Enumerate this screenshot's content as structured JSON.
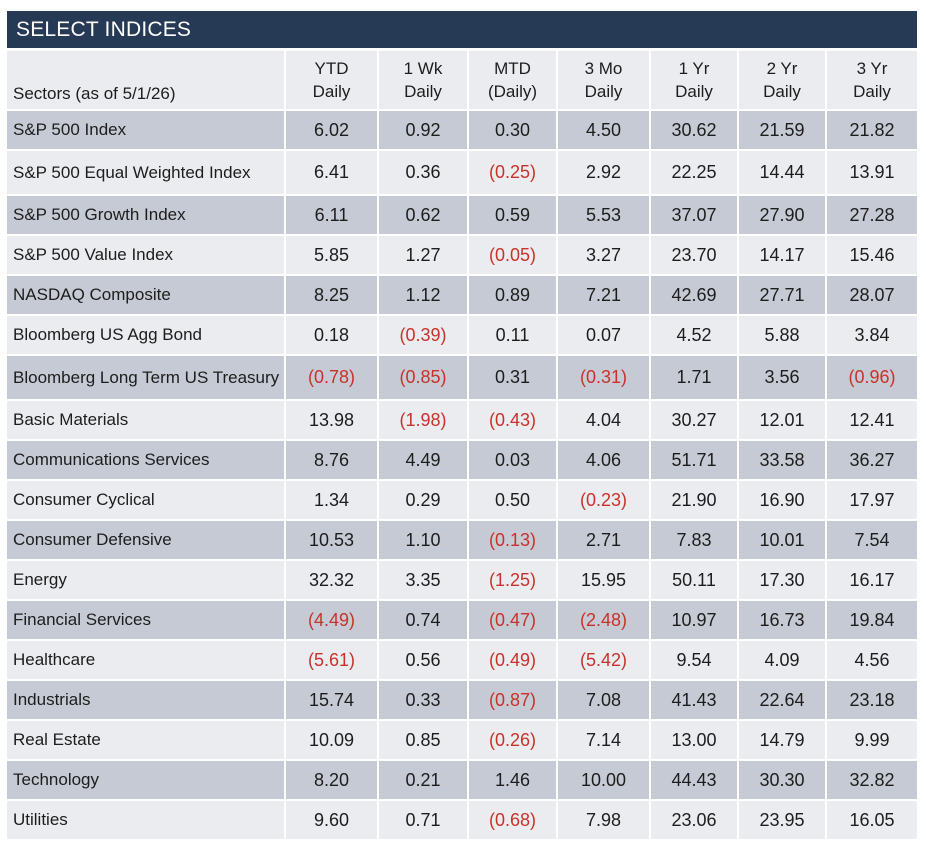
{
  "title": "SELECT INDICES",
  "header": {
    "first": "Sectors (as of 5/1/26)",
    "columns": [
      {
        "top": "YTD",
        "bottom": "Daily"
      },
      {
        "top": "1 Wk",
        "bottom": "Daily"
      },
      {
        "top": "MTD",
        "bottom": "(Daily)"
      },
      {
        "top": "3 Mo",
        "bottom": "Daily"
      },
      {
        "top": "1 Yr",
        "bottom": "Daily"
      },
      {
        "top": "2 Yr",
        "bottom": "Daily"
      },
      {
        "top": "3 Yr",
        "bottom": "Daily"
      }
    ]
  },
  "colors": {
    "header_bar": "#263955",
    "shaded_row": "#c6cad4",
    "plain_row": "#ebecef",
    "negative": "#c8322a"
  },
  "rows": [
    {
      "name": "S&P 500 Index",
      "values": [
        "6.02",
        "0.92",
        "0.30",
        "4.50",
        "30.62",
        "21.59",
        "21.82"
      ]
    },
    {
      "name": "S&P 500 Equal Weighted Index",
      "values": [
        "6.41",
        "0.36",
        "(0.25)",
        "2.92",
        "22.25",
        "14.44",
        "13.91"
      ]
    },
    {
      "name": "S&P 500 Growth Index",
      "values": [
        "6.11",
        "0.62",
        "0.59",
        "5.53",
        "37.07",
        "27.90",
        "27.28"
      ]
    },
    {
      "name": "S&P 500 Value Index",
      "values": [
        "5.85",
        "1.27",
        "(0.05)",
        "3.27",
        "23.70",
        "14.17",
        "15.46"
      ]
    },
    {
      "name": "NASDAQ Composite",
      "values": [
        "8.25",
        "1.12",
        "0.89",
        "7.21",
        "42.69",
        "27.71",
        "28.07"
      ]
    },
    {
      "name": "Bloomberg US Agg Bond",
      "values": [
        "0.18",
        "(0.39)",
        "0.11",
        "0.07",
        "4.52",
        "5.88",
        "3.84"
      ]
    },
    {
      "name": "Bloomberg Long Term US Treasury",
      "values": [
        "(0.78)",
        "(0.85)",
        "0.31",
        "(0.31)",
        "1.71",
        "3.56",
        "(0.96)"
      ]
    },
    {
      "name": "Basic Materials",
      "values": [
        "13.98",
        "(1.98)",
        "(0.43)",
        "4.04",
        "30.27",
        "12.01",
        "12.41"
      ]
    },
    {
      "name": "Communications Services",
      "values": [
        "8.76",
        "4.49",
        "0.03",
        "4.06",
        "51.71",
        "33.58",
        "36.27"
      ]
    },
    {
      "name": "Consumer Cyclical",
      "values": [
        "1.34",
        "0.29",
        "0.50",
        "(0.23)",
        "21.90",
        "16.90",
        "17.97"
      ]
    },
    {
      "name": "Consumer Defensive",
      "values": [
        "10.53",
        "1.10",
        "(0.13)",
        "2.71",
        "7.83",
        "10.01",
        "7.54"
      ]
    },
    {
      "name": "Energy",
      "values": [
        "32.32",
        "3.35",
        "(1.25)",
        "15.95",
        "50.11",
        "17.30",
        "16.17"
      ]
    },
    {
      "name": "Financial Services",
      "values": [
        "(4.49)",
        "0.74",
        "(0.47)",
        "(2.48)",
        "10.97",
        "16.73",
        "19.84"
      ]
    },
    {
      "name": "Healthcare",
      "values": [
        "(5.61)",
        "0.56",
        "(0.49)",
        "(5.42)",
        "9.54",
        "4.09",
        "4.56"
      ]
    },
    {
      "name": "Industrials",
      "values": [
        "15.74",
        "0.33",
        "(0.87)",
        "7.08",
        "41.43",
        "22.64",
        "23.18"
      ]
    },
    {
      "name": "Real Estate",
      "values": [
        "10.09",
        "0.85",
        "(0.26)",
        "7.14",
        "13.00",
        "14.79",
        "9.99"
      ]
    },
    {
      "name": "Technology",
      "values": [
        "8.20",
        "0.21",
        "1.46",
        "10.00",
        "44.43",
        "30.30",
        "32.82"
      ]
    },
    {
      "name": "Utilities",
      "values": [
        "9.60",
        "0.71",
        "(0.68)",
        "7.98",
        "23.06",
        "23.95",
        "16.05"
      ]
    }
  ]
}
